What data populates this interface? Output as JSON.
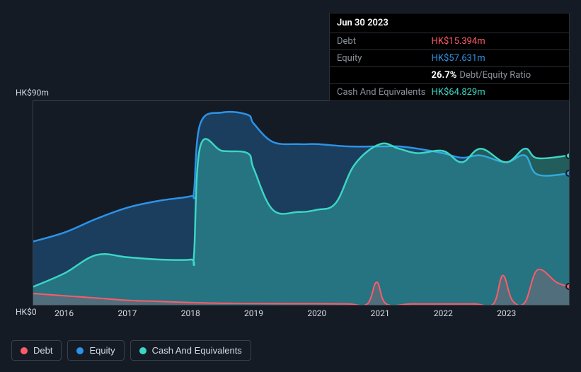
{
  "tooltip": {
    "date": "Jun 30 2023",
    "rows": [
      {
        "label": "Debt",
        "value": "HK$15.394m",
        "color": "#ff5b6a"
      },
      {
        "label": "Equity",
        "value": "HK$57.631m",
        "color": "#2c93e8"
      }
    ],
    "ratio": {
      "value": "26.7%",
      "suffix": "Debt/Equity Ratio"
    },
    "cash_row": {
      "label": "Cash And Equivalents",
      "value": "HK$64.829m",
      "color": "#3cd6c4"
    }
  },
  "chart": {
    "type": "area",
    "y_labels": {
      "top": "HK$90m",
      "bottom": "HK$0"
    },
    "ylim": [
      0,
      90
    ],
    "x_years": [
      2016,
      2017,
      2018,
      2019,
      2020,
      2021,
      2022,
      2023
    ],
    "x_range": [
      2015.5,
      2024.0
    ],
    "background": "#151b24",
    "border_color": "#3a3f49",
    "series": {
      "debt": {
        "label": "Debt",
        "stroke": "#ff5b6a",
        "fill": "#ff5b6a",
        "fill_opacity": 0.2,
        "line_width": 2,
        "points": [
          [
            2015.5,
            5
          ],
          [
            2016.0,
            4
          ],
          [
            2016.5,
            3
          ],
          [
            2017.0,
            2
          ],
          [
            2017.5,
            1.5
          ],
          [
            2018.0,
            1
          ],
          [
            2018.5,
            0.7
          ],
          [
            2019.0,
            0.6
          ],
          [
            2019.5,
            0.5
          ],
          [
            2020.0,
            0.5
          ],
          [
            2020.5,
            0.4
          ],
          [
            2020.8,
            0.4
          ],
          [
            2020.95,
            10
          ],
          [
            2021.1,
            0.4
          ],
          [
            2021.5,
            0.4
          ],
          [
            2022.0,
            0.4
          ],
          [
            2022.5,
            0.4
          ],
          [
            2022.8,
            0.4
          ],
          [
            2022.95,
            13
          ],
          [
            2023.1,
            2
          ],
          [
            2023.3,
            1
          ],
          [
            2023.5,
            15.4
          ],
          [
            2023.8,
            10
          ],
          [
            2024.0,
            8
          ]
        ]
      },
      "equity": {
        "label": "Equity",
        "stroke": "#2c93e8",
        "fill": "#2c93e8",
        "fill_opacity": 0.3,
        "line_width": 2.5,
        "points": [
          [
            2015.5,
            28
          ],
          [
            2016.0,
            32
          ],
          [
            2016.5,
            38
          ],
          [
            2017.0,
            43
          ],
          [
            2017.5,
            46
          ],
          [
            2018.0,
            48
          ],
          [
            2018.05,
            50
          ],
          [
            2018.15,
            80
          ],
          [
            2018.5,
            85
          ],
          [
            2018.9,
            84
          ],
          [
            2019.0,
            80
          ],
          [
            2019.3,
            72
          ],
          [
            2019.7,
            71
          ],
          [
            2020.0,
            71
          ],
          [
            2020.5,
            70
          ],
          [
            2021.0,
            70
          ],
          [
            2021.3,
            70
          ],
          [
            2021.6,
            69
          ],
          [
            2022.0,
            67
          ],
          [
            2022.3,
            65
          ],
          [
            2022.6,
            66
          ],
          [
            2023.0,
            63
          ],
          [
            2023.3,
            66
          ],
          [
            2023.5,
            57.6
          ],
          [
            2024.0,
            58
          ]
        ]
      },
      "cash": {
        "label": "Cash And Equivalents",
        "stroke": "#3cd6c4",
        "fill": "#3cd6c4",
        "fill_opacity": 0.35,
        "line_width": 2.5,
        "points": [
          [
            2015.5,
            8
          ],
          [
            2016.0,
            14
          ],
          [
            2016.5,
            22
          ],
          [
            2017.0,
            21
          ],
          [
            2017.5,
            20
          ],
          [
            2018.0,
            20
          ],
          [
            2018.05,
            22
          ],
          [
            2018.15,
            70
          ],
          [
            2018.5,
            68
          ],
          [
            2018.9,
            67
          ],
          [
            2019.0,
            60
          ],
          [
            2019.3,
            42
          ],
          [
            2019.7,
            41
          ],
          [
            2020.0,
            42
          ],
          [
            2020.3,
            45
          ],
          [
            2020.6,
            62
          ],
          [
            2021.0,
            71
          ],
          [
            2021.3,
            69
          ],
          [
            2021.6,
            67
          ],
          [
            2022.0,
            68
          ],
          [
            2022.3,
            63
          ],
          [
            2022.6,
            69
          ],
          [
            2023.0,
            63
          ],
          [
            2023.3,
            69
          ],
          [
            2023.5,
            64.8
          ],
          [
            2024.0,
            66
          ]
        ]
      }
    },
    "end_markers": [
      {
        "color": "#3cd6c4",
        "y": 66
      },
      {
        "color": "#2c93e8",
        "y": 58
      },
      {
        "color": "#ff5b6a",
        "y": 8
      }
    ]
  },
  "legend": [
    {
      "label": "Debt",
      "color": "#ff5b6a"
    },
    {
      "label": "Equity",
      "color": "#2c93e8"
    },
    {
      "label": "Cash And Equivalents",
      "color": "#3cd6c4"
    }
  ]
}
